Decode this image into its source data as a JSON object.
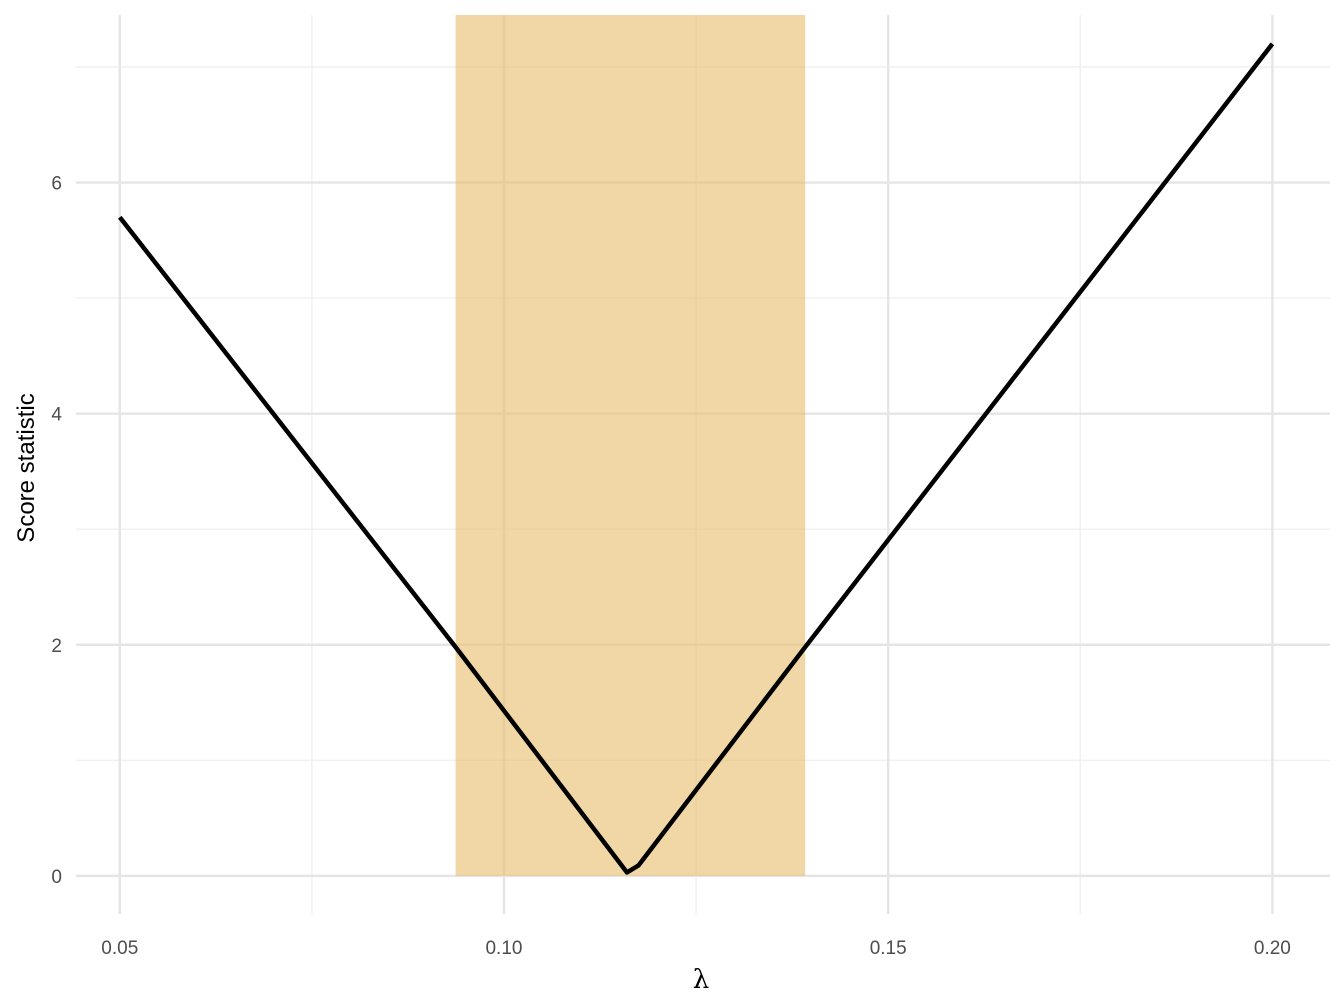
{
  "chart_data": {
    "type": "line",
    "title": "",
    "xlabel": "λ",
    "ylabel": "Score statistic",
    "xlim": [
      0.0443,
      0.2075
    ],
    "ylim": [
      -0.33,
      7.45
    ],
    "grid": true,
    "x_ticks": [
      0.05,
      0.1,
      0.15,
      0.2
    ],
    "x_tick_labels": [
      "0.05",
      "0.10",
      "0.15",
      "0.20"
    ],
    "x_minor_ticks": [
      0.075,
      0.125,
      0.175
    ],
    "y_ticks": [
      0,
      2,
      4,
      6
    ],
    "y_tick_labels": [
      "0",
      "2",
      "4",
      "6"
    ],
    "y_minor_ticks": [
      1,
      3,
      5,
      7
    ],
    "shaded_interval": {
      "x_range": [
        0.0937,
        0.1392
      ],
      "y_range": [
        0,
        7.45
      ],
      "color": "#E8BC6A",
      "opacity": 0.6
    },
    "series": [
      {
        "color": "#000000",
        "x": [
          0.05,
          0.0937,
          0.116,
          0.1175,
          0.1392,
          0.2
        ],
        "y": [
          5.7,
          1.98,
          0.03,
          0.09,
          1.98,
          7.2
        ]
      }
    ]
  },
  "colors": {
    "background": "#ffffff",
    "grid_major": "#e5e5e5",
    "grid_minor": "#f0f0f0",
    "line": "#000000",
    "band": "#E8BC6A",
    "tick_text": "#4d4d4d"
  }
}
